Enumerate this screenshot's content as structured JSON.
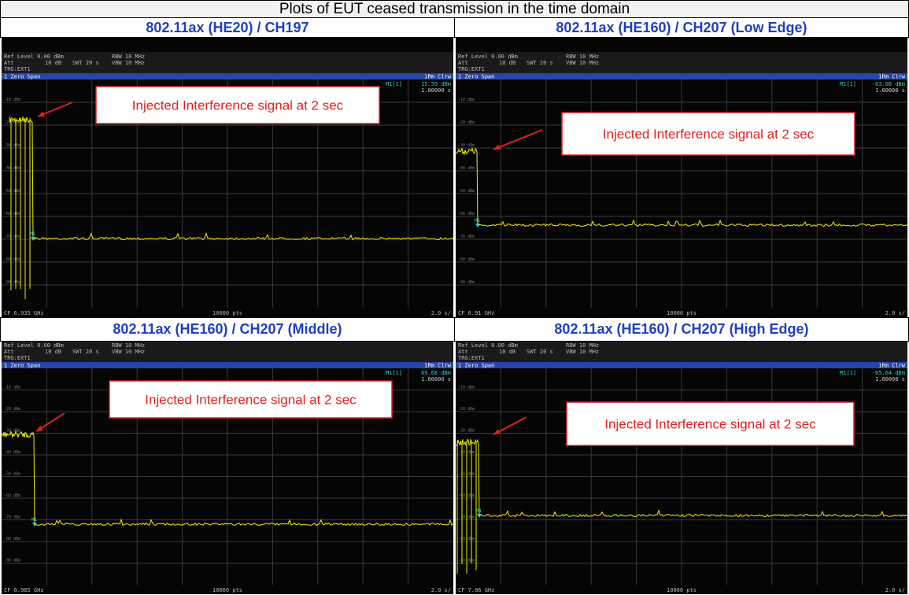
{
  "title": "Plots of EUT ceased transmission in the time domain",
  "y_labels": [
    "-10 dBm",
    "-20 dBm",
    "-30 dBm",
    "-40 dBm",
    "-50 dBm",
    "-60 dBm",
    "-70 dBm",
    "-80 dBm",
    "-90 dBm"
  ],
  "plots": [
    {
      "heading": "802.11ax (HE20) / CH197",
      "ref_level": "Ref Level 0.00 dBm",
      "att": "Att",
      "att_value": "10 dB",
      "swt": "SWT 20 s",
      "rbw": "RBW 10 MHz",
      "vbw": "VBW 10 MHz",
      "trg": "TRG:EXT1",
      "span": "1 Zero Span",
      "trace": "1Rm Clrw",
      "marker": "M1[1]",
      "marker_level": "15.59 dBm",
      "marker_time": "1.00000 s",
      "marker_label": "M1",
      "cf": "CF 6.935 GHz",
      "pts": "10000 pts",
      "scale": "2.0 s/",
      "annotation": "Injected Interference signal at 2 sec"
    },
    {
      "heading": "802.11ax (HE160) / CH207 (Low Edge)",
      "ref_level": "Ref Level 0.00 dBm",
      "att": "Att",
      "att_value": "10 dB",
      "swt": "SWT 20 s",
      "rbw": "RBW 10 MHz",
      "vbw": "VBW 10 MHz",
      "trg": "TRG:EXT1",
      "span": "1 Zero Span",
      "trace": "1Rm Clrw",
      "marker": "M1[1]",
      "marker_level": "-63.08 dBm",
      "marker_time": "1.00000 s",
      "marker_label": "M1",
      "cf": "CF 6.91 GHz",
      "pts": "10000 pts",
      "scale": "2.0 s/",
      "annotation": "Injected Interference signal at 2 sec"
    },
    {
      "heading": "802.11ax (HE160) / CH207 (Middle)",
      "ref_level": "Ref Level 0.00 dBm",
      "att": "Att",
      "att_value": "10 dB",
      "swt": "SWT 20 s",
      "rbw": "RBW 10 MHz",
      "vbw": "VBW 10 MHz",
      "trg": "TRG:EXT1",
      "span": "1 Zero Span",
      "trace": "1Rm Clrw",
      "marker": "M1[1]",
      "marker_level": "69.68 dBm",
      "marker_time": "1.00000 s",
      "marker_label": "M1",
      "cf": "CF 6.985 GHz",
      "pts": "10000 pts",
      "scale": "2.0 s/",
      "annotation": "Injected Interference signal at 2 sec"
    },
    {
      "heading": "802.11ax (HE160) / CH207 (High Edge)",
      "ref_level": "Ref Level 0.00 dBm",
      "att": "Att",
      "att_value": "10 dB",
      "swt": "SWT 20 s",
      "rbw": "RBW 10 MHz",
      "vbw": "VBW 10 MHz",
      "trg": "TRG:EXT1",
      "span": "1 Zero Span",
      "trace": "1Rm Clrw",
      "marker": "M1[1]",
      "marker_level": "-65.64 dBm",
      "marker_time": "1.00000 s",
      "marker_label": "M1",
      "cf": "CF 7.06 GHz",
      "pts": "10000 pts",
      "scale": "2.0 s/",
      "annotation": "Injected Interference signal at 2 sec"
    }
  ]
}
